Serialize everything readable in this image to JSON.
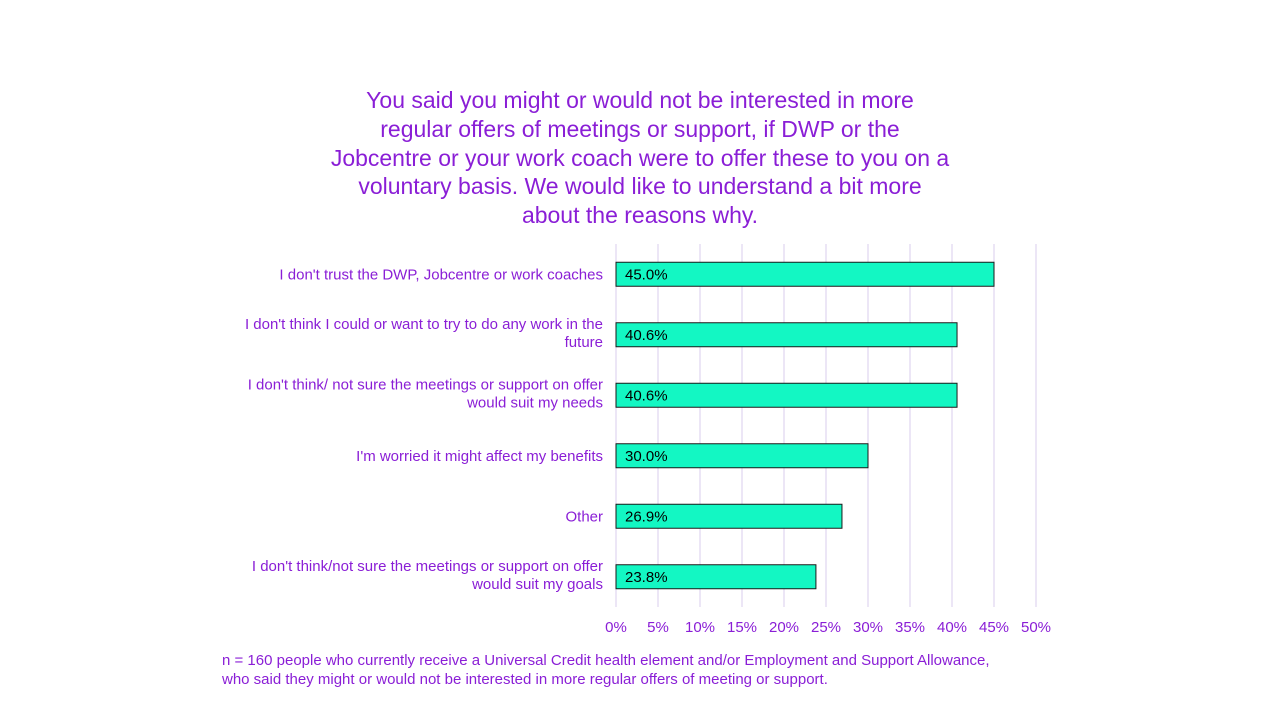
{
  "chart_data": {
    "type": "bar",
    "orientation": "horizontal",
    "title": "You said you might or would not be interested in more\nregular offers of meetings or support, if DWP or the\nJobcentre or your work coach were to offer these to you on a\nvoluntary basis. We would like to understand a bit more\nabout the reasons why.",
    "categories": [
      [
        "I don't trust the DWP, Jobcentre or work coaches"
      ],
      [
        "I don't think I could or want to try to do any work in the",
        "future"
      ],
      [
        "I don't think/ not sure the meetings or support on offer",
        "would suit my needs"
      ],
      [
        "I'm worried it might affect my benefits"
      ],
      [
        "Other"
      ],
      [
        "I don't think/not sure the meetings or support on offer",
        "would suit my goals"
      ]
    ],
    "values": [
      45.0,
      40.6,
      40.6,
      30.0,
      26.9,
      23.8
    ],
    "data_labels": [
      "45.0%",
      "40.6%",
      "40.6%",
      "30.0%",
      "26.9%",
      "23.8%"
    ],
    "x_ticks": [
      "0%",
      "5%",
      "10%",
      "15%",
      "20%",
      "25%",
      "30%",
      "35%",
      "40%",
      "45%",
      "50%"
    ],
    "xlim": [
      0,
      50
    ],
    "grid": true,
    "legend": "none"
  },
  "footnote": {
    "line1": "n = 160 people who currently receive a Universal Credit health element and/or Employment and Support Allowance,",
    "line2": "who said they might or would not be interested in more regular offers of meeting or support."
  },
  "colors": {
    "text": "#8a1ed6",
    "bar_fill": "#13f7c3",
    "bar_stroke": "#1a1a1a",
    "gridline": "#d9ccec"
  }
}
